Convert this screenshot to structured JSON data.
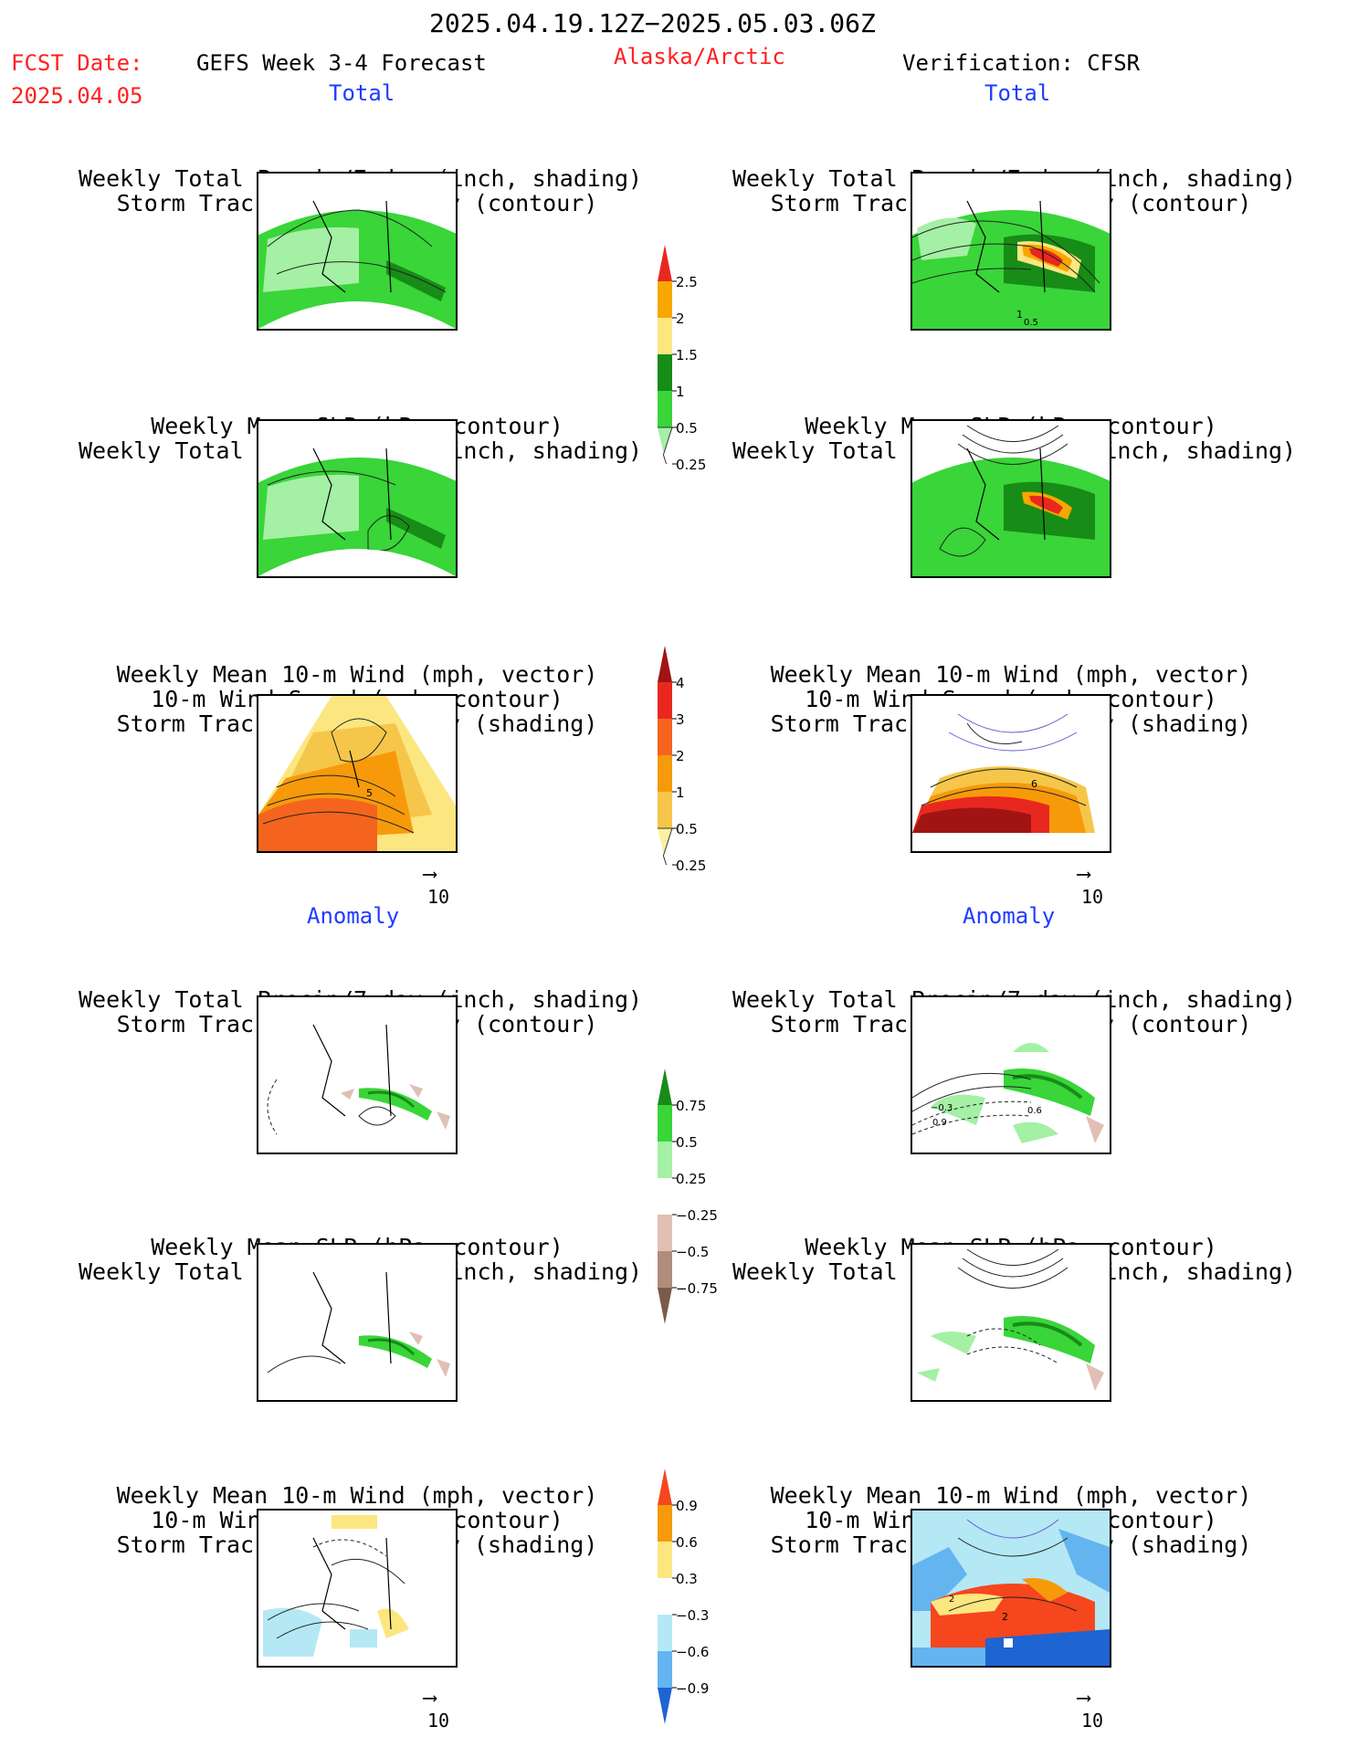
{
  "header": {
    "date_range": "2025.04.19.12Z−2025.05.03.06Z",
    "fcst_label": "FCST Date:",
    "fcst_date": "2025.04.05",
    "model": "GEFS Week 3-4 Forecast",
    "region": "Alaska/Arctic",
    "verification": "Verification: CFSR"
  },
  "sections": {
    "total": "Total",
    "anomaly": "Anomaly"
  },
  "titles": {
    "precip_std": [
      "Weekly Total Precip/7-day (inch, shading)",
      "Storm Track Density/7-day (contour)"
    ],
    "slp_precip": [
      "Weekly Mean SLP (hPa, contour)",
      "Weekly Total Precip/7-day (inch, shading)"
    ],
    "wind": [
      "Weekly Mean 10-m Wind (mph, vector)",
      "10-m Wind Speed (mph, contour)",
      "Storm Track Density/7-day (shading)"
    ]
  },
  "vector_ref": "10",
  "colorbars": {
    "precip_total": {
      "labels": [
        "2.5",
        "2",
        "1.5",
        "1",
        "0.5",
        "0.25"
      ],
      "colors": [
        "#e8281e",
        "#f7a700",
        "#fce680",
        "#178c17",
        "#39d539",
        "#a4f0a4"
      ]
    },
    "storm_total": {
      "labels": [
        "4",
        "3",
        "2",
        "1",
        "0.5",
        "0.25"
      ],
      "colors": [
        "#a01414",
        "#e8281e",
        "#f5641e",
        "#f79a0a",
        "#f5c64a",
        "#fcf0a0"
      ]
    },
    "precip_anom": {
      "labels": [
        "0.75",
        "0.5",
        "0.25",
        "−0.25",
        "−0.5",
        "−0.75"
      ],
      "colors": [
        "#178c17",
        "#39d539",
        "#a4f0a4",
        "#ffffff",
        "#e0c0b4",
        "#b08c7c",
        "#7c5a4c"
      ]
    },
    "storm_anom": {
      "labels": [
        "0.9",
        "0.6",
        "0.3",
        "−0.3",
        "−0.6",
        "−0.9"
      ],
      "colors": [
        "#f5461e",
        "#f79a0a",
        "#fce680",
        "#ffffff",
        "#b4e8f5",
        "#64b4f0",
        "#1e64d2"
      ]
    }
  },
  "map_labels": {
    "r1_contour_a": "1",
    "r1_contour_b": "0.5",
    "r3_left": "5",
    "r3_right": "6",
    "r4_a": "−0.3",
    "r4_b": "0.9",
    "r4_c": "0.6",
    "r6_left": "2",
    "r6_right": "2"
  }
}
